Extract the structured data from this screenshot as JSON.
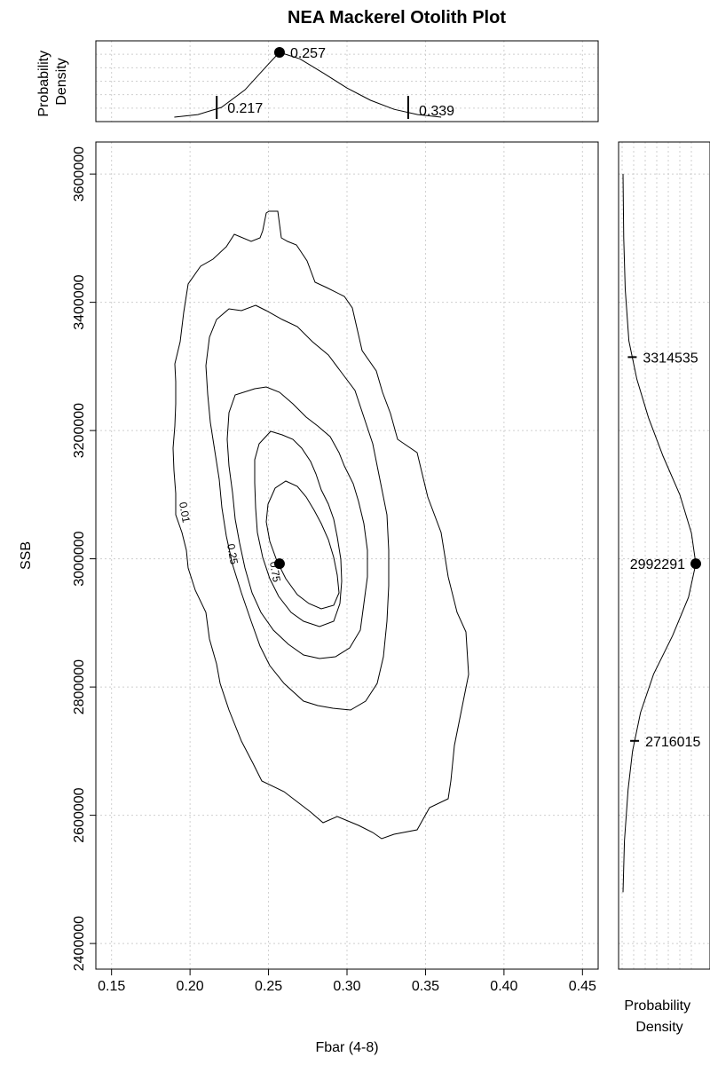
{
  "chart_data": {
    "type": "contour",
    "title": "NEA Mackerel Otolith Plot",
    "xlabel": "Fbar (4-8)",
    "ylabel": "SSB",
    "xlim": [
      0.14,
      0.46
    ],
    "ylim": [
      2360000,
      3650000
    ],
    "x_ticks": [
      "0.15",
      "0.20",
      "0.25",
      "0.30",
      "0.35",
      "0.40",
      "0.45"
    ],
    "y_ticks": [
      "2400000",
      "2600000",
      "2800000",
      "3000000",
      "3200000",
      "3400000",
      "3600000"
    ],
    "grid": true,
    "point_estimate": {
      "fbar": 0.257,
      "ssb": 2992291
    },
    "contour_levels": [
      "0.01",
      "0.25",
      "0.75"
    ],
    "fbar_density": {
      "ylabel": "Probability\nDensity",
      "x": [
        0.19,
        0.205,
        0.22,
        0.235,
        0.25,
        0.257,
        0.27,
        0.285,
        0.3,
        0.315,
        0.33,
        0.345,
        0.36
      ],
      "density": [
        0.0,
        0.04,
        0.15,
        0.42,
        0.82,
        1.0,
        0.9,
        0.68,
        0.45,
        0.26,
        0.12,
        0.04,
        0.0
      ],
      "lower": {
        "value": 0.217,
        "label": "0.217"
      },
      "median": {
        "value": 0.257,
        "label": "0.257"
      },
      "upper": {
        "value": 0.339,
        "label": "0.339"
      }
    },
    "ssb_density": {
      "xlabel": "Probability\nDensity",
      "y": [
        2480000,
        2560000,
        2640000,
        2700000,
        2760000,
        2820000,
        2880000,
        2940000,
        2992291,
        3040000,
        3100000,
        3160000,
        3220000,
        3280000,
        3340000,
        3420000,
        3500000,
        3600000
      ],
      "density": [
        0.0,
        0.02,
        0.07,
        0.13,
        0.24,
        0.42,
        0.68,
        0.9,
        1.0,
        0.94,
        0.78,
        0.55,
        0.35,
        0.19,
        0.08,
        0.03,
        0.01,
        0.0
      ],
      "lower": {
        "value": 2716015,
        "label": "2716015"
      },
      "median": {
        "value": 2992291,
        "label": "2992291"
      },
      "upper": {
        "value": 3314535,
        "label": "3314535"
      }
    }
  }
}
